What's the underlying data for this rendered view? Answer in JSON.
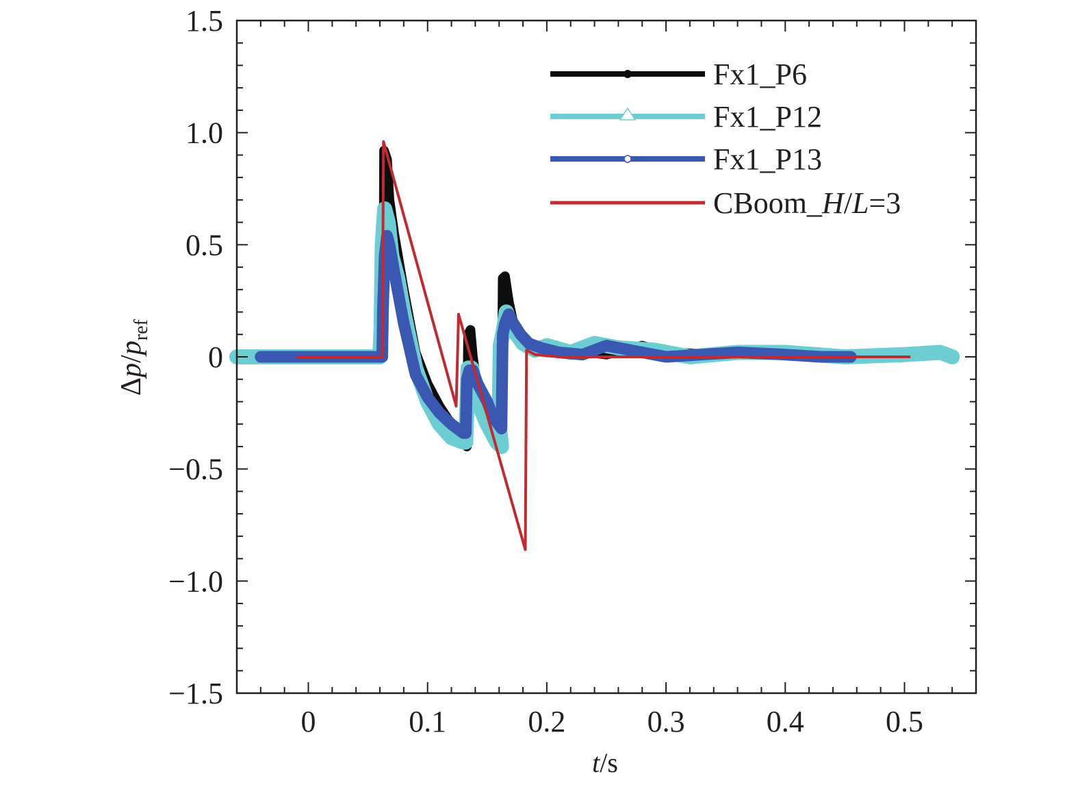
{
  "chart_data": {
    "type": "line",
    "title": "",
    "xlabel": {
      "italic": "t",
      "rest": "/s"
    },
    "ylabel": {
      "delta": "Δ",
      "p1": "p",
      "slash": "/",
      "p2": "p",
      "sub": "ref"
    },
    "xlim": [
      -0.06,
      0.56
    ],
    "ylim": [
      -1.5,
      1.5
    ],
    "xticks": [
      {
        "value": 0,
        "label": "0"
      },
      {
        "value": 0.1,
        "label": "0.1"
      },
      {
        "value": 0.2,
        "label": "0.2"
      },
      {
        "value": 0.3,
        "label": "0.3"
      },
      {
        "value": 0.4,
        "label": "0.4"
      },
      {
        "value": 0.5,
        "label": "0.5"
      }
    ],
    "yticks": [
      {
        "value": 1.5,
        "label": "1.5"
      },
      {
        "value": 1.0,
        "label": "1.0"
      },
      {
        "value": 0.5,
        "label": "0.5"
      },
      {
        "value": 0,
        "label": "0"
      },
      {
        "value": -0.5,
        "label": "−0.5"
      },
      {
        "value": -1.0,
        "label": "−1.0"
      },
      {
        "value": -1.5,
        "label": "−1.5"
      }
    ],
    "legend_position": "top-right",
    "series": [
      {
        "name": "Fx1_P6",
        "color": "#0d0d0d",
        "marker": "filled-circle",
        "points": [
          [
            -0.04,
            0.0
          ],
          [
            0.062,
            0.0
          ],
          [
            0.063,
            0.15
          ],
          [
            0.0635,
            0.92
          ],
          [
            0.066,
            0.88
          ],
          [
            0.068,
            0.7
          ],
          [
            0.072,
            0.55
          ],
          [
            0.08,
            0.3
          ],
          [
            0.09,
            0.02
          ],
          [
            0.1,
            -0.12
          ],
          [
            0.11,
            -0.22
          ],
          [
            0.12,
            -0.3
          ],
          [
            0.13,
            -0.35
          ],
          [
            0.133,
            -0.4
          ],
          [
            0.134,
            0.1
          ],
          [
            0.136,
            0.12
          ],
          [
            0.138,
            0.0
          ],
          [
            0.142,
            -0.15
          ],
          [
            0.15,
            -0.25
          ],
          [
            0.155,
            -0.3
          ],
          [
            0.16,
            -0.32
          ],
          [
            0.162,
            -0.3
          ],
          [
            0.163,
            0.35
          ],
          [
            0.165,
            0.36
          ],
          [
            0.168,
            0.25
          ],
          [
            0.172,
            0.15
          ],
          [
            0.178,
            0.08
          ],
          [
            0.19,
            0.03
          ],
          [
            0.2,
            0.02
          ],
          [
            0.22,
            0.03
          ],
          [
            0.25,
            0.01
          ],
          [
            0.28,
            0.05
          ],
          [
            0.3,
            0.02
          ],
          [
            0.35,
            0.01
          ],
          [
            0.4,
            0.01
          ],
          [
            0.455,
            0.0
          ]
        ]
      },
      {
        "name": "Fx1_P12",
        "color": "#6ccdd2",
        "marker": "open-triangle",
        "points": [
          [
            -0.06,
            0.0
          ],
          [
            0.06,
            0.0
          ],
          [
            0.061,
            0.12
          ],
          [
            0.062,
            0.5
          ],
          [
            0.064,
            0.66
          ],
          [
            0.067,
            0.6
          ],
          [
            0.07,
            0.45
          ],
          [
            0.075,
            0.35
          ],
          [
            0.08,
            0.2
          ],
          [
            0.09,
            -0.05
          ],
          [
            0.1,
            -0.2
          ],
          [
            0.11,
            -0.3
          ],
          [
            0.12,
            -0.36
          ],
          [
            0.13,
            -0.38
          ],
          [
            0.132,
            -0.38
          ],
          [
            0.134,
            -0.05
          ],
          [
            0.137,
            -0.05
          ],
          [
            0.142,
            -0.2
          ],
          [
            0.15,
            -0.3
          ],
          [
            0.158,
            -0.38
          ],
          [
            0.162,
            -0.4
          ],
          [
            0.16,
            -0.3
          ],
          [
            0.161,
            0.05
          ],
          [
            0.163,
            0.1
          ],
          [
            0.166,
            0.2
          ],
          [
            0.172,
            0.12
          ],
          [
            0.18,
            0.06
          ],
          [
            0.19,
            0.03
          ],
          [
            0.2,
            0.05
          ],
          [
            0.22,
            0.02
          ],
          [
            0.24,
            0.06
          ],
          [
            0.26,
            0.04
          ],
          [
            0.29,
            0.03
          ],
          [
            0.32,
            0.0
          ],
          [
            0.36,
            0.02
          ],
          [
            0.4,
            0.02
          ],
          [
            0.45,
            0.0
          ],
          [
            0.5,
            0.01
          ],
          [
            0.53,
            0.02
          ],
          [
            0.54,
            0.0
          ]
        ]
      },
      {
        "name": "Fx1_P13",
        "color": "#3a57b2",
        "marker": "open-circle",
        "points": [
          [
            -0.04,
            0.0
          ],
          [
            0.062,
            0.0
          ],
          [
            0.0625,
            0.2
          ],
          [
            0.064,
            0.45
          ],
          [
            0.066,
            0.54
          ],
          [
            0.068,
            0.5
          ],
          [
            0.072,
            0.38
          ],
          [
            0.08,
            0.15
          ],
          [
            0.09,
            -0.08
          ],
          [
            0.1,
            -0.18
          ],
          [
            0.11,
            -0.25
          ],
          [
            0.12,
            -0.3
          ],
          [
            0.13,
            -0.34
          ],
          [
            0.132,
            -0.34
          ],
          [
            0.133,
            -0.1
          ],
          [
            0.135,
            -0.06
          ],
          [
            0.138,
            -0.06
          ],
          [
            0.142,
            -0.12
          ],
          [
            0.15,
            -0.2
          ],
          [
            0.155,
            -0.27
          ],
          [
            0.162,
            -0.32
          ],
          [
            0.163,
            0.1
          ],
          [
            0.165,
            0.15
          ],
          [
            0.168,
            0.19
          ],
          [
            0.172,
            0.15
          ],
          [
            0.178,
            0.1
          ],
          [
            0.185,
            0.06
          ],
          [
            0.195,
            0.04
          ],
          [
            0.21,
            0.02
          ],
          [
            0.23,
            0.01
          ],
          [
            0.25,
            0.05
          ],
          [
            0.27,
            0.03
          ],
          [
            0.3,
            0.0
          ],
          [
            0.33,
            0.01
          ],
          [
            0.36,
            0.02
          ],
          [
            0.4,
            0.01
          ],
          [
            0.43,
            0.0
          ],
          [
            0.455,
            0.0
          ]
        ]
      },
      {
        "name": "CBoom_H/L=3",
        "label_parts": [
          "CBoom_",
          "H",
          "/",
          "L",
          "=3"
        ],
        "color": "#c12a2e",
        "marker": "none",
        "points": [
          [
            -0.01,
            0.0
          ],
          [
            0.062,
            0.0
          ],
          [
            0.063,
            0.96
          ],
          [
            0.124,
            -0.22
          ],
          [
            0.126,
            0.19
          ],
          [
            0.182,
            -0.86
          ],
          [
            0.183,
            0.03
          ],
          [
            0.19,
            0.01
          ],
          [
            0.21,
            0.0
          ],
          [
            0.3,
            0.0
          ],
          [
            0.4,
            0.0
          ],
          [
            0.505,
            0.0
          ]
        ]
      }
    ]
  }
}
